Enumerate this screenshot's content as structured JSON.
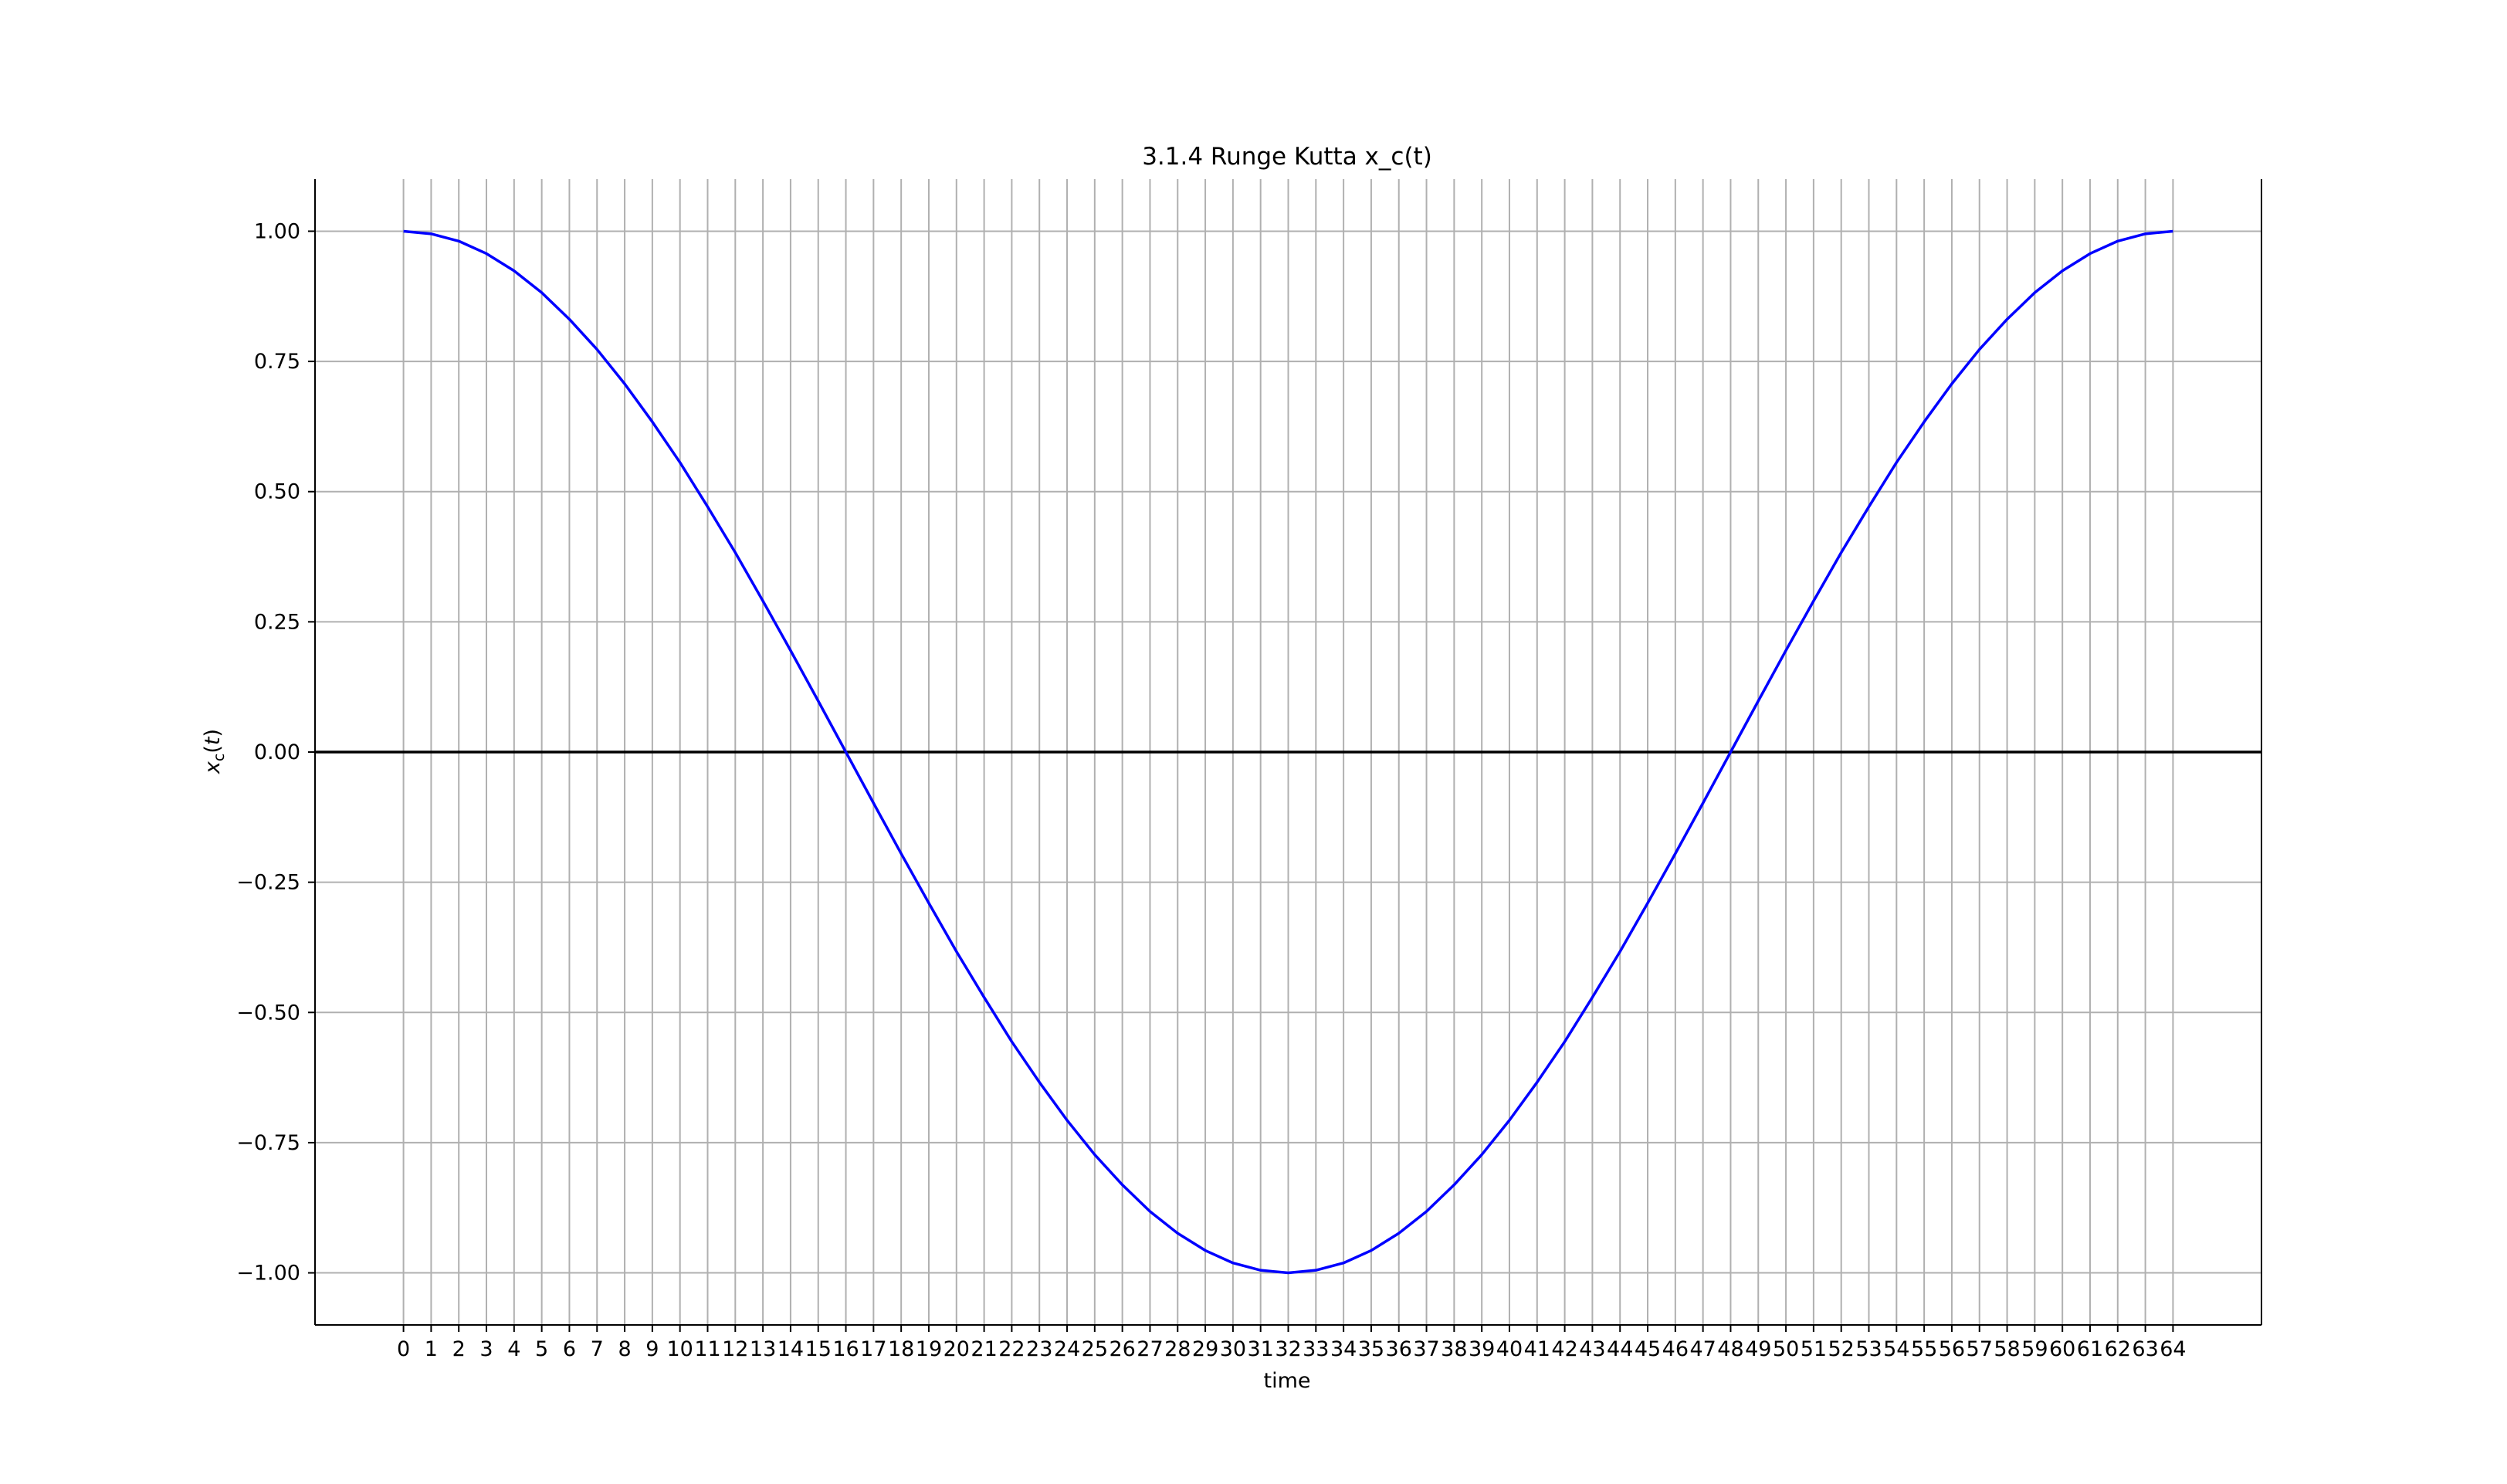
{
  "chart_data": {
    "type": "line",
    "title": "3.1.4 Runge Kutta x_c(t)",
    "xlabel": "time",
    "ylabel": "x_c(t)",
    "xlim": [
      -3.2,
      67.2
    ],
    "ylim": [
      -1.1,
      1.1
    ],
    "x_ticks": [
      0,
      1,
      2,
      3,
      4,
      5,
      6,
      7,
      8,
      9,
      10,
      11,
      12,
      13,
      14,
      15,
      16,
      17,
      18,
      19,
      20,
      21,
      22,
      23,
      24,
      25,
      26,
      27,
      28,
      29,
      30,
      31,
      32,
      33,
      34,
      35,
      36,
      37,
      38,
      39,
      40,
      41,
      42,
      43,
      44,
      45,
      46,
      47,
      48,
      49,
      50,
      51,
      52,
      53,
      54,
      55,
      56,
      57,
      58,
      59,
      60,
      61,
      62,
      63,
      64
    ],
    "y_ticks": [
      1.0,
      0.75,
      0.5,
      0.25,
      0.0,
      -0.25,
      -0.5,
      -0.75,
      -1.0
    ],
    "y_tick_labels": [
      "1.00",
      "0.75",
      "0.50",
      "0.25",
      "0.00",
      "−0.25",
      "−0.50",
      "−0.75",
      "−1.00"
    ],
    "grid": true,
    "hline": 0,
    "series": [
      {
        "color": "#0000ff",
        "x": [
          0,
          1,
          2,
          3,
          4,
          5,
          6,
          7,
          8,
          9,
          10,
          11,
          12,
          13,
          14,
          15,
          16,
          17,
          18,
          19,
          20,
          21,
          22,
          23,
          24,
          25,
          26,
          27,
          28,
          29,
          30,
          31,
          32,
          33,
          34,
          35,
          36,
          37,
          38,
          39,
          40,
          41,
          42,
          43,
          44,
          45,
          46,
          47,
          48,
          49,
          50,
          51,
          52,
          53,
          54,
          55,
          56,
          57,
          58,
          59,
          60,
          61,
          62,
          63,
          64
        ],
        "y": [
          1.0,
          0.995,
          0.981,
          0.957,
          0.924,
          0.882,
          0.831,
          0.773,
          0.707,
          0.634,
          0.556,
          0.471,
          0.383,
          0.29,
          0.195,
          0.098,
          0.0,
          -0.098,
          -0.195,
          -0.29,
          -0.383,
          -0.471,
          -0.556,
          -0.634,
          -0.707,
          -0.773,
          -0.831,
          -0.882,
          -0.924,
          -0.957,
          -0.981,
          -0.995,
          -1.0,
          -0.995,
          -0.981,
          -0.957,
          -0.924,
          -0.882,
          -0.831,
          -0.773,
          -0.707,
          -0.634,
          -0.556,
          -0.471,
          -0.383,
          -0.29,
          -0.195,
          -0.098,
          0.0,
          0.098,
          0.195,
          0.29,
          0.383,
          0.471,
          0.556,
          0.634,
          0.707,
          0.773,
          0.831,
          0.882,
          0.924,
          0.957,
          0.981,
          0.995,
          1.0
        ]
      }
    ]
  }
}
